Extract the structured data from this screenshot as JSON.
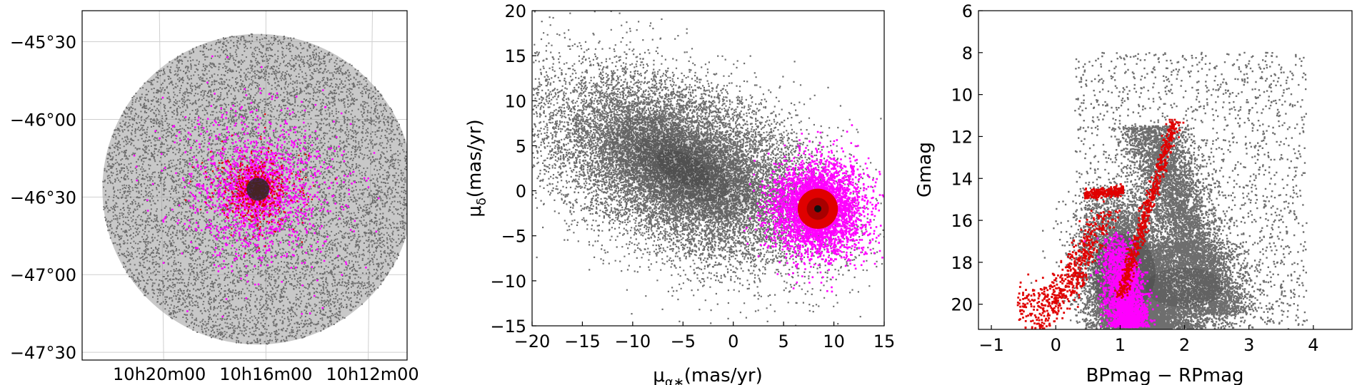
{
  "colors": {
    "field": "#6e6e6e",
    "density_dark": "#2a2a2a",
    "selected": "#ff00ff",
    "members": "#e00000",
    "member_core": "#7a0000"
  },
  "chart_data": [
    {
      "type": "scatter",
      "panel": "sky",
      "xlabel": "",
      "ylabel": "",
      "x_ticks": [
        "10h20m00",
        "10h16m00",
        "10h12m00"
      ],
      "y_ticks": [
        "−45°30",
        "−46°00",
        "−46°30",
        "−47°00",
        "−47°30"
      ],
      "x_tick_ra_min": [
        620,
        616,
        612
      ],
      "y_tick_dec_deg": [
        -45.5,
        -46.0,
        -46.5,
        -47.0,
        -47.5
      ],
      "xlim_ra_min": [
        622.9,
        610.7
      ],
      "ylim_dec_deg": [
        -47.55,
        -45.3
      ],
      "field_center": {
        "ra_min": 616.3,
        "dec_deg": -46.45
      },
      "field_radius_deg": 1.0,
      "grid": true,
      "series": [
        {
          "color": "field",
          "approx_points": 26000
        },
        {
          "color": "selected",
          "approx_points": 2300
        },
        {
          "color": "members",
          "approx_points": 800
        }
      ]
    },
    {
      "type": "scatter",
      "panel": "proper-motion",
      "xlabel_parts": {
        "base": "μ",
        "sub": "α∗",
        "tail": "(mas/yr)"
      },
      "ylabel_parts": {
        "base": "μ",
        "sub": "δ",
        "tail": "(mas/yr)"
      },
      "xlim": [
        -20,
        15
      ],
      "ylim": [
        -15,
        20
      ],
      "x_ticks": [
        -20,
        -15,
        -10,
        -5,
        0,
        5,
        10,
        15
      ],
      "y_ticks": [
        -15,
        -10,
        -5,
        0,
        5,
        10,
        15,
        20
      ],
      "tick_labels_x": [
        "−20",
        "−15",
        "−10",
        "−5",
        "0",
        "5",
        "10",
        "15"
      ],
      "tick_labels_y": [
        "−15",
        "−10",
        "−5",
        "0",
        "5",
        "10",
        "15",
        "20"
      ],
      "grid": false,
      "field_peak": [
        -5.0,
        2.5
      ],
      "cluster_center": [
        8.4,
        -2.0
      ],
      "member_radius": 2.0,
      "selected_radius": 5.5,
      "series": [
        {
          "color": "field",
          "approx_points": 30000
        },
        {
          "color": "selected",
          "approx_points": 3000
        },
        {
          "color": "members",
          "approx_points": 2500
        }
      ]
    },
    {
      "type": "scatter",
      "panel": "cmd",
      "xlabel": "BPmag − RPmag",
      "ylabel": "Gmag",
      "xlim": [
        -1.2,
        4.6
      ],
      "ylim": [
        21.2,
        6
      ],
      "y_inverted": true,
      "x_ticks": [
        -1,
        0,
        1,
        2,
        3,
        4
      ],
      "y_ticks": [
        6,
        8,
        10,
        12,
        14,
        16,
        18,
        20
      ],
      "tick_labels_x": [
        "−1",
        "0",
        "1",
        "2",
        "3",
        "4"
      ],
      "tick_labels_y": [
        "6",
        "8",
        "10",
        "12",
        "14",
        "16",
        "18",
        "20"
      ],
      "grid": false,
      "series": [
        {
          "color": "field",
          "approx_points": 26000
        },
        {
          "color": "selected",
          "approx_points": 2200
        },
        {
          "color": "members",
          "approx_points": 1500
        }
      ]
    }
  ]
}
